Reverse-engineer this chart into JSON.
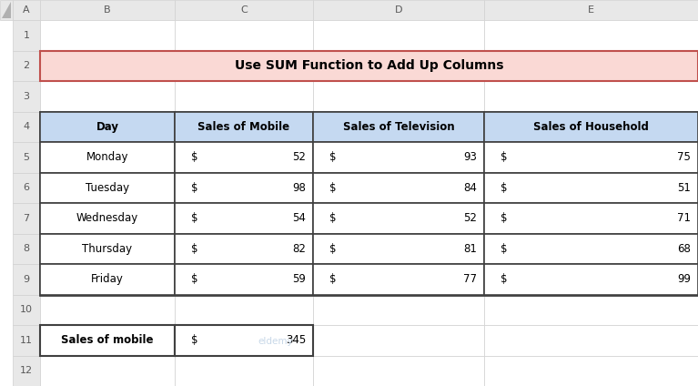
{
  "title": "Use SUM Function to Add Up Columns",
  "title_bg": "#FAD9D5",
  "title_border": "#C0504D",
  "header_bg": "#C5D9F1",
  "header_labels": [
    "Day",
    "Sales of Mobile",
    "Sales of Television",
    "Sales of Household"
  ],
  "rows": [
    [
      "Monday",
      "52",
      "93",
      "75"
    ],
    [
      "Tuesday",
      "98",
      "84",
      "51"
    ],
    [
      "Wednesday",
      "54",
      "52",
      "71"
    ],
    [
      "Thursday",
      "82",
      "81",
      "68"
    ],
    [
      "Friday",
      "59",
      "77",
      "99"
    ]
  ],
  "summary_label": "Sales of mobile",
  "summary_value": "345",
  "col_labels": [
    "A",
    "B",
    "C",
    "D",
    "E"
  ],
  "row_labels": [
    "1",
    "2",
    "3",
    "4",
    "5",
    "6",
    "7",
    "8",
    "9",
    "10",
    "11",
    "12"
  ],
  "grid_line_color": "#D0D0D0",
  "table_border_color": "#404040",
  "bg_color": "#FFFFFF",
  "row_header_bg": "#E8E8E8",
  "col_header_bg": "#E8E8E8",
  "triangle_color": "#B0B0B0",
  "row_text_color": "#595959",
  "col_text_color": "#595959",
  "data_font_color": "#000000",
  "font_size_header": 8.0,
  "font_size_data": 8.5,
  "font_size_title": 10.0,
  "font_size_table_header": 8.5,
  "watermark_color": "#C8D8E8"
}
